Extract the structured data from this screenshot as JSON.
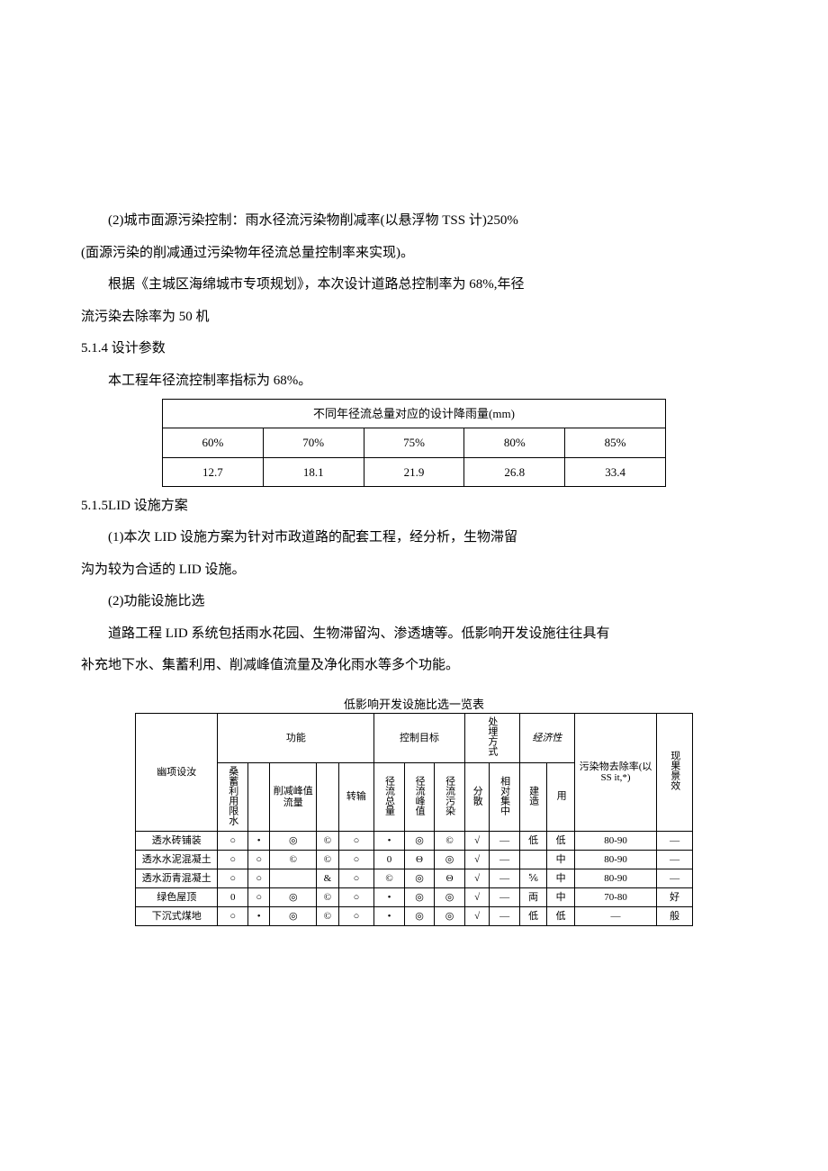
{
  "paragraphs": {
    "p1": "(2)城市面源污染控制：雨水径流污染物削减率(以悬浮物 TSS 计)250%",
    "p1b": "(面源污染的削减通过污染物年径流总量控制率来实现)。",
    "p2": "根据《主城区海绵城市专项规划》，本次设计道路总控制率为 68%,年径",
    "p2b": "流污染去除率为 50 机",
    "s514": "5.1.4 设计参数",
    "p3": "本工程年径流控制率指标为 68%。",
    "s515": "5.1.5LID 设施方案",
    "p4": "(1)本次 LID 设施方案为针对市政道路的配套工程，经分析，生物滞留",
    "p4b": "沟为较为合适的 LID 设施。",
    "p5": "(2)功能设施比选",
    "p6": "道路工程 LID 系统包括雨水花园、生物滞留沟、渗透塘等。低影响开发设施往往具有",
    "p6b": "补充地下水、集蓄利用、削减峰值流量及净化雨水等多个功能。"
  },
  "table1": {
    "caption": "不同年径流总量对应的设计降雨量(mm)",
    "headers": [
      "60%",
      "70%",
      "75%",
      "80%",
      "85%"
    ],
    "values": [
      "12.7",
      "18.1",
      "21.9",
      "26.8",
      "33.4"
    ]
  },
  "table2": {
    "caption": "低影响开发设施比选一览表",
    "col_items": "幽项设汝",
    "grp_func": "功能",
    "grp_target": "控制目标",
    "grp_place": "处埋方式",
    "grp_econ": "经济性",
    "col_pollutant": "污染物去除率(以 SS it,*)",
    "col_effect": "现果景效",
    "func_cols": [
      "桑蓄利用限水",
      "",
      "削减峰值流量",
      "",
      "转输"
    ],
    "target_cols": [
      "径流总量",
      "径流峰值",
      "径流污染"
    ],
    "place_cols": [
      "分散",
      "相对集中"
    ],
    "econ_cols": [
      "建造",
      "用"
    ],
    "rows": [
      {
        "name": "透水砖铺装",
        "f": [
          "○",
          "•",
          "◎",
          "©",
          "○"
        ],
        "t": [
          "•",
          "◎",
          "©"
        ],
        "p": [
          "√",
          "—"
        ],
        "e": [
          "低",
          "低"
        ],
        "pr": "80-90",
        "ef": "—"
      },
      {
        "name": "透水水泥混凝土",
        "f": [
          "○",
          "○",
          "©",
          "©",
          "○"
        ],
        "t": [
          "0",
          "Θ",
          "◎"
        ],
        "p": [
          "√",
          "—"
        ],
        "e": [
          "",
          "中"
        ],
        "pr": "80-90",
        "ef": "—"
      },
      {
        "name": "透水沥青混凝土",
        "f": [
          "○",
          "○",
          "",
          "&",
          "○"
        ],
        "t": [
          "©",
          "◎",
          "Θ"
        ],
        "p": [
          "√",
          "—"
        ],
        "e": [
          "⅚",
          "中"
        ],
        "pr": "80-90",
        "ef": "—"
      },
      {
        "name": "绿色屋顶",
        "f": [
          "0",
          "○",
          "◎",
          "©",
          "○"
        ],
        "t": [
          "•",
          "◎",
          "◎"
        ],
        "p": [
          "√",
          "—"
        ],
        "e": [
          "両",
          "中"
        ],
        "pr": "70-80",
        "ef": "好"
      },
      {
        "name": "下沉式煤地",
        "f": [
          "○",
          "•",
          "◎",
          "©",
          "○"
        ],
        "t": [
          "•",
          "◎",
          "◎"
        ],
        "p": [
          "√",
          "—"
        ],
        "e": [
          "低",
          "低"
        ],
        "pr": "—",
        "ef": "般"
      }
    ]
  },
  "style": {
    "page_bg": "#ffffff",
    "text_color": "#000000",
    "body_fontsize": 15,
    "table1_fontsize": 13,
    "table2_fontsize": 11,
    "border_color": "#000000"
  }
}
